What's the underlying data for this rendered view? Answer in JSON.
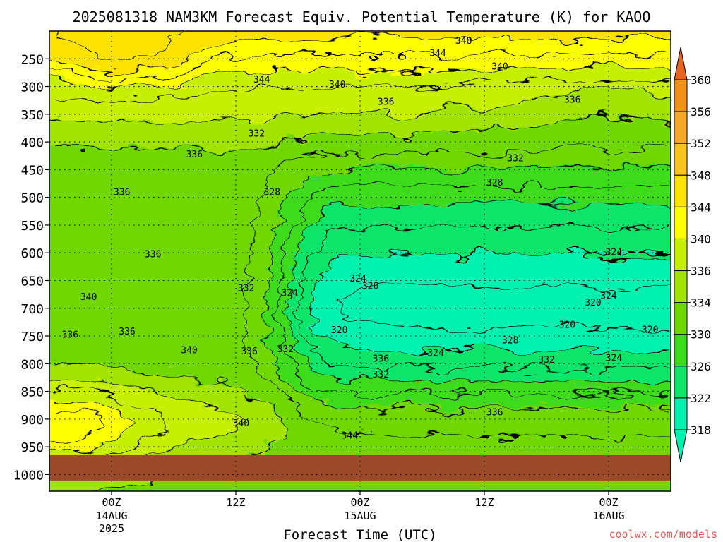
{
  "chart_data": {
    "type": "heatmap",
    "title": "2025081318 NAM3KM Forecast Equiv. Potential Temperature (K) for KAOO",
    "xlabel": "Forecast Time (UTC)",
    "ylabel": "",
    "x_ticks": [
      {
        "hour": 0,
        "label": "00Z",
        "sub1": "14AUG",
        "sub2": "2025"
      },
      {
        "hour": 12,
        "label": "12Z",
        "sub1": "",
        "sub2": ""
      },
      {
        "hour": 24,
        "label": "00Z",
        "sub1": "15AUG",
        "sub2": ""
      },
      {
        "hour": 36,
        "label": "12Z",
        "sub1": "",
        "sub2": ""
      },
      {
        "hour": 48,
        "label": "00Z",
        "sub1": "16AUG",
        "sub2": ""
      }
    ],
    "xlim_hours": [
      -6,
      54
    ],
    "y_levels": [
      250,
      300,
      350,
      400,
      450,
      500,
      550,
      600,
      650,
      700,
      750,
      800,
      850,
      900,
      950,
      1000
    ],
    "ylim": [
      200,
      1030
    ],
    "ground_level": 965,
    "colorbar": {
      "label_values": [
        360,
        356,
        352,
        348,
        344,
        340,
        336,
        334,
        330,
        326,
        322,
        318
      ],
      "colors": [
        "#e8641e",
        "#f09119",
        "#f5a92a",
        "#f8c321",
        "#fce200",
        "#fdff00",
        "#c7f000",
        "#a2e300",
        "#6fd800",
        "#3cdb1c",
        "#11e46a",
        "#00f0b0"
      ]
    },
    "contour_labels": [
      {
        "hour": 34,
        "p": 218,
        "value": "348"
      },
      {
        "hour": 31.5,
        "p": 240,
        "value": "344"
      },
      {
        "hour": 37.5,
        "p": 264,
        "value": "340"
      },
      {
        "hour": 14.5,
        "p": 288,
        "value": "344"
      },
      {
        "hour": 21.8,
        "p": 297,
        "value": "340"
      },
      {
        "hour": 26.5,
        "p": 328,
        "value": "336"
      },
      {
        "hour": 44.5,
        "p": 324,
        "value": "336"
      },
      {
        "hour": 14,
        "p": 385,
        "value": "332"
      },
      {
        "hour": 39,
        "p": 430,
        "value": "332"
      },
      {
        "hour": 8,
        "p": 423,
        "value": "336"
      },
      {
        "hour": 37,
        "p": 474,
        "value": "328"
      },
      {
        "hour": 1,
        "p": 491,
        "value": "336"
      },
      {
        "hour": 15.5,
        "p": 491,
        "value": "328"
      },
      {
        "hour": 4,
        "p": 603,
        "value": "336"
      },
      {
        "hour": 23.8,
        "p": 647,
        "value": "324"
      },
      {
        "hour": 25,
        "p": 660,
        "value": "320"
      },
      {
        "hour": 17.2,
        "p": 673,
        "value": "324"
      },
      {
        "hour": 13,
        "p": 664,
        "value": "332"
      },
      {
        "hour": 48.5,
        "p": 599,
        "value": "324"
      },
      {
        "hour": 48,
        "p": 678,
        "value": "324"
      },
      {
        "hour": 46.5,
        "p": 690,
        "value": "320"
      },
      {
        "hour": 44,
        "p": 730,
        "value": "320"
      },
      {
        "hour": 52,
        "p": 739,
        "value": "320"
      },
      {
        "hour": 22,
        "p": 740,
        "value": "320"
      },
      {
        "hour": -2.2,
        "p": 680,
        "value": "340"
      },
      {
        "hour": -4,
        "p": 748,
        "value": "336"
      },
      {
        "hour": 1.5,
        "p": 742,
        "value": "336"
      },
      {
        "hour": 7.5,
        "p": 776,
        "value": "340"
      },
      {
        "hour": 13.3,
        "p": 778,
        "value": "336"
      },
      {
        "hour": 16.8,
        "p": 774,
        "value": "332"
      },
      {
        "hour": 26,
        "p": 791,
        "value": "336"
      },
      {
        "hour": 38.5,
        "p": 758,
        "value": "328"
      },
      {
        "hour": 42,
        "p": 793,
        "value": "332"
      },
      {
        "hour": 48.5,
        "p": 790,
        "value": "324"
      },
      {
        "hour": 31.3,
        "p": 781,
        "value": "324"
      },
      {
        "hour": 26,
        "p": 820,
        "value": "332"
      },
      {
        "hour": 12.5,
        "p": 908,
        "value": "340"
      },
      {
        "hour": 23,
        "p": 930,
        "value": "344"
      },
      {
        "hour": 37,
        "p": 888,
        "value": "336"
      }
    ]
  },
  "footer": {
    "credit": "coolwx.com/models"
  }
}
